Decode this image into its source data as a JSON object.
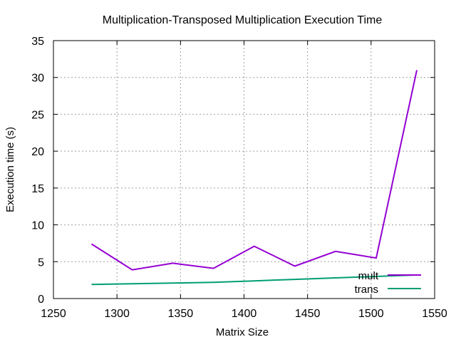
{
  "chart_data": {
    "type": "line",
    "title": "Multiplication-Transposed Multiplication Execution Time",
    "xlabel": "Matrix Size",
    "ylabel": "Execution time (s)",
    "xlim": [
      1250,
      1550
    ],
    "ylim": [
      0,
      35
    ],
    "xticks": [
      "1250",
      "1300",
      "1350",
      "1400",
      "1450",
      "1500",
      "1550"
    ],
    "yticks": [
      "0",
      "5",
      "10",
      "15",
      "20",
      "25",
      "30",
      "35"
    ],
    "grid": true,
    "legend_position": "bottom-right",
    "x": [
      1280,
      1312,
      1344,
      1376,
      1408,
      1440,
      1472,
      1504,
      1536
    ],
    "series": [
      {
        "name": "mult",
        "color": "#9400d3",
        "values": [
          7.4,
          3.9,
          4.8,
          4.1,
          7.1,
          4.4,
          6.4,
          5.5,
          31.0
        ]
      },
      {
        "name": "trans",
        "color": "#009e73",
        "values": [
          1.9,
          2.0,
          2.1,
          2.2,
          2.4,
          2.6,
          2.8,
          3.0,
          3.2
        ]
      }
    ]
  }
}
